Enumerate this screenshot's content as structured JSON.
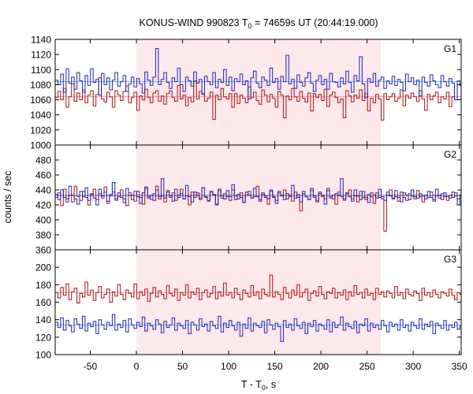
{
  "chart_data": {
    "type": "line",
    "title_main": "KONUS-WIND 990823 T",
    "title_sub": "0",
    "title_rest": " = 74659s UT (20:44:19.000)",
    "xlabel_main": "T - T",
    "xlabel_sub": "0",
    "xlabel_rest": ", s",
    "ylabel": "counts / sec",
    "xlim": [
      -88,
      352
    ],
    "xticks": [
      -50,
      0,
      50,
      100,
      150,
      200,
      250,
      300,
      350
    ],
    "highlight": {
      "x0": 0,
      "x1": 265,
      "color": "#fde8ec"
    },
    "bin_width": 2.944,
    "colors": {
      "red": "#aa1111",
      "blue": "#2222bb",
      "red_bg": "#e79aa4",
      "blue_bg": "#6fb3e8"
    },
    "panels": [
      {
        "label": "G1",
        "ylim": [
          1000,
          1140
        ],
        "yticks": [
          1000,
          1020,
          1040,
          1060,
          1080,
          1100,
          1120,
          1140
        ],
        "series": [
          {
            "color": "red",
            "background": 1064,
            "y": [
              1063,
              1071,
              1060,
              1075,
              1050,
              1064,
              1081,
              1058,
              1069,
              1060,
              1073,
              1056,
              1066,
              1072,
              1052,
              1067,
              1089,
              1061,
              1057,
              1070,
              1064,
              1050,
              1072,
              1066,
              1059,
              1071,
              1078,
              1056,
              1063,
              1070,
              1046,
              1065,
              1060,
              1074,
              1063,
              1056,
              1069,
              1072,
              1058,
              1065,
              1054,
              1068,
              1072,
              1063,
              1058,
              1079,
              1061,
              1066,
              1052,
              1063,
              1057,
              1085,
              1061,
              1071,
              1067,
              1058,
              1062,
              1070,
              1034,
              1066,
              1060,
              1075,
              1064,
              1061,
              1068,
              1050,
              1068,
              1055,
              1066,
              1062,
              1056,
              1077,
              1063,
              1070,
              1059,
              1054,
              1073,
              1066,
              1057,
              1067,
              1062,
              1050,
              1071,
              1066,
              1036,
              1065,
              1060,
              1075,
              1064,
              1058,
              1071,
              1062,
              1057,
              1069,
              1045,
              1068,
              1063,
              1067,
              1059,
              1074,
              1051,
              1066,
              1070,
              1063,
              1056,
              1061,
              1036,
              1072,
              1065,
              1057,
              1066,
              1062,
              1073,
              1059,
              1068,
              1045,
              1062,
              1056,
              1067,
              1061,
              1033,
              1068,
              1060,
              1064,
              1068,
              1058,
              1062,
              1073,
              1052,
              1066,
              1062,
              1069,
              1064,
              1058,
              1072,
              1061,
              1046,
              1067,
              1060,
              1065,
              1070,
              1056,
              1064,
              1061,
              1070,
              1051,
              1064
            ]
          },
          {
            "color": "blue",
            "background": 1084,
            "y": [
              1086,
              1080,
              1094,
              1070,
              1101,
              1082,
              1090,
              1074,
              1096,
              1085,
              1070,
              1092,
              1079,
              1101,
              1083,
              1087,
              1066,
              1095,
              1080,
              1089,
              1073,
              1086,
              1096,
              1078,
              1084,
              1092,
              1071,
              1081,
              1090,
              1077,
              1088,
              1081,
              1069,
              1097,
              1086,
              1079,
              1090,
              1128,
              1080,
              1087,
              1096,
              1083,
              1075,
              1089,
              1084,
              1102,
              1080,
              1071,
              1090,
              1085,
              1078,
              1097,
              1082,
              1087,
              1068,
              1091,
              1084,
              1080,
              1096,
              1076,
              1087,
              1083,
              1100,
              1079,
              1090,
              1072,
              1088,
              1084,
              1094,
              1080,
              1085,
              1061,
              1089,
              1098,
              1082,
              1076,
              1090,
              1086,
              1079,
              1102,
              1083,
              1088,
              1074,
              1091,
              1084,
              1119,
              1081,
              1087,
              1075,
              1093,
              1083,
              1078,
              1089,
              1096,
              1082,
              1071,
              1086,
              1092,
              1080,
              1087,
              1074,
              1095,
              1084,
              1083,
              1077,
              1089,
              1081,
              1098,
              1083,
              1070,
              1092,
              1085,
              1117,
              1081,
              1063,
              1088,
              1083,
              1095,
              1078,
              1086,
              1090,
              1075,
              1085,
              1081,
              1091,
              1079,
              1087,
              1083,
              1072,
              1094,
              1084,
              1089,
              1080,
              1086,
              1065,
              1090,
              1083,
              1078,
              1093,
              1085,
              1080,
              1076,
              1092,
              1084,
              1078,
              1088,
              1082,
              1060,
              1085,
              1079
            ]
          }
        ]
      },
      {
        "label": "G2",
        "ylim": [
          360,
          500
        ],
        "yticks": [
          360,
          380,
          400,
          420,
          440,
          460,
          480
        ],
        "series": [
          {
            "color": "red",
            "background": 432,
            "y": [
              430,
              436,
              419,
              441,
              428,
              433,
              424,
              445,
              431,
              426,
              438,
              430,
              420,
              434,
              441,
              427,
              435,
              429,
              444,
              422,
              432,
              437,
              426,
              431,
              440,
              428,
              419,
              436,
              433,
              425,
              438,
              430,
              421,
              442,
              431,
              427,
              435,
              445,
              428,
              432,
              424,
              439,
              430,
              436,
              426,
              433,
              441,
              428,
              432,
              420,
              437,
              430,
              436,
              427,
              443,
              431,
              425,
              437,
              433,
              421,
              439,
              429,
              435,
              431,
              426,
              440,
              432,
              428,
              436,
              423,
              433,
              438,
              429,
              431,
              445,
              427,
              434,
              430,
              421,
              438,
              431,
              426,
              436,
              432,
              440,
              428,
              433,
              425,
              437,
              430,
              412,
              435,
              431,
              427,
              439,
              430,
              424,
              435,
              431,
              428,
              442,
              429,
              433,
              421,
              437,
              431,
              426,
              435,
              440,
              428,
              432,
              424,
              438,
              430,
              427,
              434,
              431,
              422,
              436,
              430,
              428,
              385,
              433,
              440,
              429,
              431,
              425,
              437,
              430,
              426,
              435,
              432,
              428,
              439,
              431,
              424,
              433,
              430,
              437,
              427,
              432,
              429,
              435,
              431,
              426,
              433,
              430,
              436,
              428,
              432
            ]
          },
          {
            "color": "blue",
            "background": 433,
            "y": [
              434,
              427,
              440,
              430,
              424,
              445,
              433,
              428,
              421,
              438,
              431,
              443,
              426,
              435,
              429,
              420,
              441,
              432,
              437,
              425,
              434,
              450,
              428,
              436,
              430,
              423,
              442,
              433,
              427,
              438,
              431,
              422,
              436,
              444,
              429,
              433,
              426,
              440,
              431,
              455,
              429,
              437,
              432,
              425,
              441,
              430,
              435,
              428,
              446,
              431,
              424,
              437,
              433,
              429,
              443,
              430,
              426,
              438,
              434,
              420,
              441,
              432,
              428,
              439,
              431,
              447,
              427,
              434,
              430,
              423,
              437,
              433,
              429,
              442,
              431,
              425,
              436,
              432,
              428,
              440,
              430,
              422,
              438,
              433,
              427,
              435,
              431,
              446,
              429,
              434,
              424,
              438,
              431,
              427,
              442,
              432,
              426,
              437,
              433,
              421,
              439,
              431,
              428,
              435,
              433,
              455,
              428,
              436,
              431,
              425,
              440,
              432,
              427,
              438,
              430,
              423,
              436,
              433,
              429,
              441,
              431,
              426,
              437,
              432,
              428,
              439,
              430,
              424,
              436,
              433,
              427,
              440,
              431,
              429,
              435,
              432,
              428,
              438,
              430,
              425,
              441,
              433,
              427,
              436,
              431,
              429,
              437,
              432,
              420,
              434
            ]
          }
        ]
      },
      {
        "label": "G3",
        "ylim": [
          100,
          220
        ],
        "yticks": [
          100,
          120,
          140,
          160,
          180,
          200
        ],
        "series": [
          {
            "color": "red",
            "background": 171,
            "y": [
              171,
              165,
              177,
              168,
              181,
              163,
              172,
              176,
              159,
              170,
              166,
              183,
              168,
              174,
              162,
              171,
              178,
              165,
              169,
              175,
              160,
              172,
              167,
              180,
              169,
              163,
              174,
              170,
              166,
              181,
              164,
              172,
              168,
              175,
              161,
              170,
              177,
              166,
              173,
              169,
              164,
              179,
              170,
              167,
              175,
              162,
              171,
              168,
              180,
              165,
              172,
              169,
              176,
              163,
              171,
              174,
              166,
              170,
              178,
              164,
              172,
              167,
              182,
              168,
              171,
              165,
              176,
              169,
              163,
              174,
              170,
              166,
              179,
              168,
              172,
              164,
              175,
              169,
              167,
              191,
              166,
              172,
              169,
              163,
              177,
              170,
              165,
              174,
              168,
              180,
              166,
              171,
              175,
              162,
              170,
              173,
              167,
              178,
              169,
              164,
              172,
              170,
              176,
              165,
              171,
              168,
              174,
              163,
              172,
              167,
              179,
              169,
              171,
              165,
              175,
              168,
              170,
              163,
              176,
              169,
              172,
              166,
              173,
              170,
              165,
              178,
              168,
              171,
              164,
              175,
              169,
              167,
              173,
              170,
              162,
              176,
              168,
              171,
              166,
              174,
              169,
              165,
              172,
              170,
              167,
              175,
              168,
              163,
              171,
              169
            ]
          },
          {
            "color": "blue",
            "background": 134,
            "y": [
              137,
              131,
              142,
              128,
              139,
              133,
              126,
              141,
              135,
              130,
              144,
              127,
              136,
              132,
              138,
              124,
              140,
              134,
              129,
              137,
              133,
              146,
              128,
              135,
              131,
              139,
              126,
              141,
              134,
              130,
              137,
              132,
              143,
              127,
              136,
              133,
              129,
              140,
              135,
              125,
              138,
              131,
              134,
              142,
              128,
              136,
              133,
              130,
              139,
              124,
              137,
              134,
              128,
              141,
              132,
              135,
              127,
              138,
              133,
              130,
              144,
              126,
              136,
              131,
              139,
              133,
              128,
              137,
              121,
              135,
              130,
              142,
              127,
              136,
              133,
              131,
              138,
              125,
              140,
              134,
              129,
              136,
              132,
              115,
              139,
              131,
              135,
              128,
              141,
              133,
              130,
              137,
              124,
              136,
              132,
              139,
              127,
              135,
              133,
              129,
              140,
              126,
              137,
              131,
              134,
              143,
              128,
              136,
              132,
              130,
              138,
              125,
              135,
              133,
              141,
              127,
              136,
              131,
              134,
              129,
              139,
              133,
              126,
              137,
              132,
              135,
              128,
              140,
              131,
              134,
              127,
              137,
              133,
              130,
              141,
              129,
              135,
              132,
              138,
              124,
              136,
              133,
              130,
              139,
              128,
              134,
              131,
              137,
              129,
              133
            ]
          }
        ]
      }
    ]
  }
}
